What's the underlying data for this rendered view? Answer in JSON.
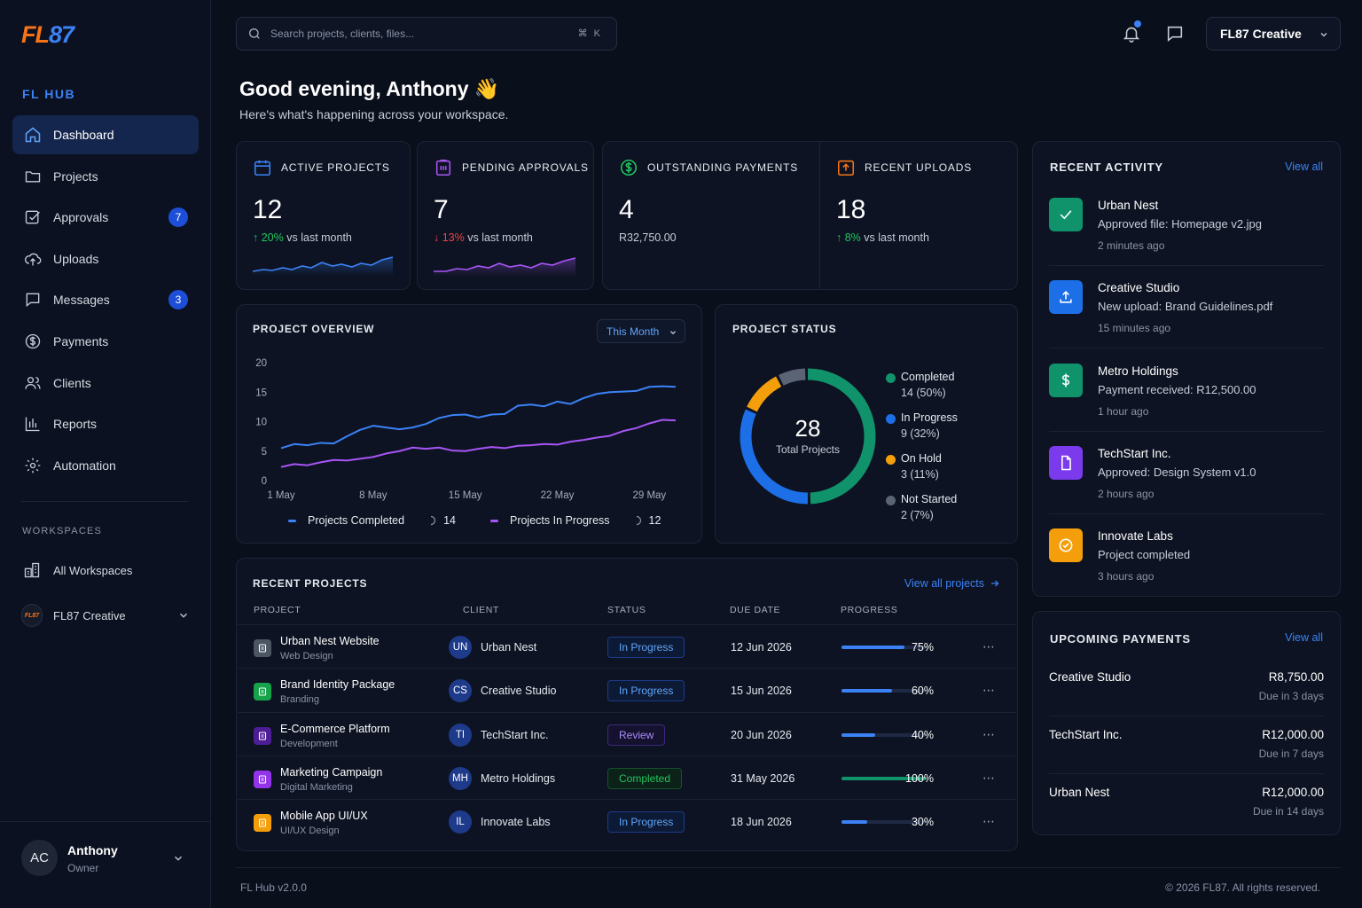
{
  "brand": {
    "logo_a": "FL",
    "logo_b": "87",
    "hub_label": "FL HUB"
  },
  "colors": {
    "accent": "#3b82f6",
    "brand_orange": "#f97316",
    "bg": "#0a0f1c",
    "card": "#0d1322",
    "success": "#22c55e",
    "danger": "#ef4444",
    "purple": "#a855f7"
  },
  "sidebar": {
    "items": [
      {
        "label": "Dashboard",
        "icon": "home-icon",
        "active": true
      },
      {
        "label": "Projects",
        "icon": "folder-icon"
      },
      {
        "label": "Approvals",
        "icon": "check-square-icon",
        "badge": "7"
      },
      {
        "label": "Uploads",
        "icon": "cloud-upload-icon"
      },
      {
        "label": "Messages",
        "icon": "message-icon",
        "badge": "3"
      },
      {
        "label": "Payments",
        "icon": "dollar-circle-icon"
      },
      {
        "label": "Clients",
        "icon": "users-icon"
      },
      {
        "label": "Reports",
        "icon": "bar-chart-icon"
      },
      {
        "label": "Automation",
        "icon": "gear-icon"
      }
    ],
    "workspaces_label": "WORKSPACES",
    "all_workspaces": "All Workspaces",
    "current_workspace": "FL87 Creative",
    "mini_logo": "FL87",
    "user": {
      "initials": "AC",
      "name": "Anthony",
      "role": "Owner"
    }
  },
  "topbar": {
    "search_placeholder": "Search projects, clients, files...",
    "shortcut": "⌘ K",
    "workspace": "FL87 Creative"
  },
  "greeting": {
    "title": "Good evening, Anthony 👋",
    "subtitle": "Here's what's happening across your workspace."
  },
  "kpis": [
    {
      "title": "ACTIVE PROJECTS",
      "value": "12",
      "delta": "20%",
      "delta_dir": "up",
      "delta_text": "vs last month",
      "spark_color": "#3b82f6"
    },
    {
      "title": "PENDING APPROVALS",
      "value": "7",
      "delta": "13%",
      "delta_dir": "down",
      "delta_text": "vs last month",
      "spark_color": "#a855f7"
    },
    {
      "title": "OUTSTANDING PAYMENTS",
      "value": "4",
      "sub": "R32,750.00"
    },
    {
      "title": "RECENT UPLOADS",
      "value": "18",
      "delta": "8%",
      "delta_dir": "up",
      "delta_text": "vs last month"
    }
  ],
  "overview": {
    "title": "PROJECT OVERVIEW",
    "range": "This Month",
    "legend": [
      {
        "name": "Projects Completed",
        "value": "14"
      },
      {
        "name": "Projects In Progress",
        "value": "12"
      }
    ]
  },
  "chart_data": [
    {
      "type": "line",
      "title": "PROJECT OVERVIEW",
      "x_ticks": [
        "1 May",
        "8 May",
        "15 May",
        "22 May",
        "29 May"
      ],
      "y_ticks": [
        0,
        5,
        10,
        15,
        20
      ],
      "ylim": [
        0,
        20
      ],
      "series": [
        {
          "name": "Projects Completed",
          "color": "#3b82f6",
          "values": [
            5.5,
            6.2,
            6,
            6.4,
            6.3,
            7.5,
            8.6,
            9.3,
            9,
            8.7,
            9,
            9.6,
            10.6,
            11.1,
            11.2,
            10.7,
            11.2,
            11.3,
            12.7,
            12.9,
            12.6,
            13.4,
            13,
            14,
            14.7,
            15,
            15.1,
            15.2,
            15.9,
            16,
            15.9
          ]
        },
        {
          "name": "Projects In Progress",
          "color": "#a855f7",
          "values": [
            2.3,
            2.8,
            2.6,
            3.1,
            3.5,
            3.4,
            3.7,
            4,
            4.6,
            5,
            5.6,
            5.4,
            5.6,
            5.1,
            5,
            5.4,
            5.7,
            5.5,
            5.9,
            6,
            6.2,
            6.1,
            6.6,
            6.9,
            7.3,
            7.6,
            8.4,
            8.9,
            9.7,
            10.3,
            10.2
          ]
        }
      ]
    },
    {
      "type": "pie",
      "title": "PROJECT STATUS",
      "center_value": "28",
      "center_label": "Total Projects",
      "slices": [
        {
          "name": "Completed",
          "value": 14,
          "label": "14 (50%)",
          "color": "#10936b"
        },
        {
          "name": "In Progress",
          "value": 9,
          "label": "9 (32%)",
          "color": "#1d6fe8"
        },
        {
          "name": "On Hold",
          "value": 3,
          "label": "3 (11%)",
          "color": "#f59e0b"
        },
        {
          "name": "Not Started",
          "value": 2,
          "label": "2 (7%)",
          "color": "#5b6475"
        }
      ]
    }
  ],
  "status": {
    "title": "PROJECT STATUS"
  },
  "recent_projects": {
    "title": "RECENT PROJECTS",
    "view_all": "View all projects",
    "headers": [
      "PROJECT",
      "CLIENT",
      "STATUS",
      "DUE DATE",
      "PROGRESS"
    ],
    "rows": [
      {
        "name": "Urban Nest Website",
        "category": "Web Design",
        "icon_color": "#4b5563",
        "client_initials": "UN",
        "client": "Urban Nest",
        "status": "In Progress",
        "status_kind": "prog",
        "due": "12 Jun 2026",
        "progress": 75,
        "progress_label": "75%",
        "bar_color": "#3b82f6"
      },
      {
        "name": "Brand Identity Package",
        "category": "Branding",
        "icon_color": "#16a34a",
        "client_initials": "CS",
        "client": "Creative Studio",
        "status": "In Progress",
        "status_kind": "prog",
        "due": "15 Jun 2026",
        "progress": 60,
        "progress_label": "60%",
        "bar_color": "#3b82f6"
      },
      {
        "name": "E-Commerce Platform",
        "category": "Development",
        "icon_color": "#4c1d95",
        "client_initials": "TI",
        "client": "TechStart Inc.",
        "status": "Review",
        "status_kind": "rev",
        "due": "20 Jun 2026",
        "progress": 40,
        "progress_label": "40%",
        "bar_color": "#3b82f6"
      },
      {
        "name": "Marketing Campaign",
        "category": "Digital Marketing",
        "icon_color": "#9333ea",
        "client_initials": "MH",
        "client": "Metro Holdings",
        "status": "Completed",
        "status_kind": "done",
        "due": "31 May 2026",
        "progress": 100,
        "progress_label": "100%",
        "bar_color": "#10936b"
      },
      {
        "name": "Mobile App UI/UX",
        "category": "UI/UX Design",
        "icon_color": "#f59e0b",
        "client_initials": "IL",
        "client": "Innovate Labs",
        "status": "In Progress",
        "status_kind": "prog",
        "due": "18 Jun 2026",
        "progress": 30,
        "progress_label": "30%",
        "bar_color": "#3b82f6"
      }
    ]
  },
  "activity": {
    "title": "RECENT ACTIVITY",
    "view_all": "View all",
    "items": [
      {
        "title": "Urban Nest",
        "desc": "Approved file: Homepage v2.jpg",
        "time": "2 minutes ago",
        "color": "#10936b",
        "icon": "check-icon"
      },
      {
        "title": "Creative Studio",
        "desc": "New upload: Brand Guidelines.pdf",
        "time": "15 minutes ago",
        "color": "#1d6fe8",
        "icon": "upload-icon"
      },
      {
        "title": "Metro Holdings",
        "desc": "Payment received: R12,500.00",
        "time": "1 hour ago",
        "color": "#10936b",
        "icon": "dollar-icon"
      },
      {
        "title": "TechStart Inc.",
        "desc": "Approved: Design System v1.0",
        "time": "2 hours ago",
        "color": "#7c3aed",
        "icon": "document-icon"
      },
      {
        "title": "Innovate Labs",
        "desc": "Project completed",
        "time": "3 hours ago",
        "color": "#f59e0b",
        "icon": "check-circle-icon"
      }
    ]
  },
  "payments": {
    "title": "UPCOMING PAYMENTS",
    "view_all": "View all",
    "items": [
      {
        "client": "Creative Studio",
        "amount": "R8,750.00",
        "due": "Due in 3 days"
      },
      {
        "client": "TechStart Inc.",
        "amount": "R12,000.00",
        "due": "Due in 7 days"
      },
      {
        "client": "Urban Nest",
        "amount": "R12,000.00",
        "due": "Due in 14 days"
      }
    ]
  },
  "footer": {
    "version": "FL Hub v2.0.0",
    "copyright": "© 2026 FL87. All rights reserved."
  }
}
